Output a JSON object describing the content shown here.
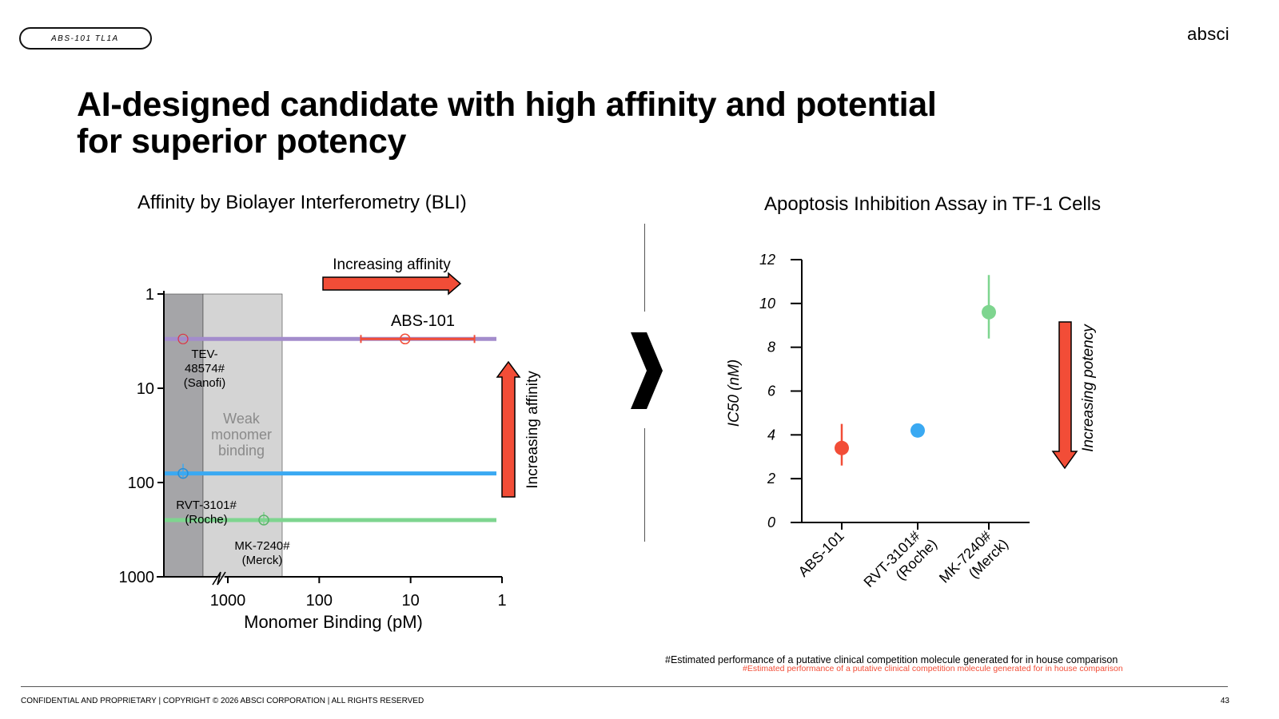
{
  "header": {
    "tag": "ABS-101 TL1A",
    "logo": "absci"
  },
  "title": {
    "line1": "AI-designed candidate with high affinity and potential",
    "line2": "for superior potency"
  },
  "colors": {
    "abs": "#f24d37",
    "rvt": "#3aa9f2",
    "mk": "#7ed58f",
    "tev": "#a38ccc",
    "arrow": "#f24d37",
    "dark_gray": "#a5a5a8",
    "light_gray": "#d4d4d4"
  },
  "bli": {
    "heading": "Affinity by Biolayer Interferometry (BLI)",
    "gray_band_label": "Weak monomer binding",
    "increasing_affinity_top": "Increasing affinity",
    "increasing_affinity_right": "Increasing affinity",
    "abs_label": "ABS-101",
    "tev_label": [
      "TEV-",
      "48574#",
      "(Sanofi)"
    ],
    "rvt_label": [
      "RVT-3101#",
      "(Roche)"
    ],
    "mk_label": [
      "MK-7240#",
      "(Merck)"
    ],
    "xlabel": "Monomer Binding (pM)",
    "ylabel": "",
    "xticks": [
      "1000",
      "100",
      "10",
      "1"
    ],
    "yticks": [
      "1",
      "10",
      "100",
      "1000"
    ]
  },
  "assay": {
    "heading": "Apoptosis Inhibition Assay in TF-1 Cells",
    "ylabel": "IC50 (nM)",
    "increasing_potency": "Increasing potency",
    "xticks": [
      [
        "ABS-101"
      ],
      [
        "RVT-3101#",
        "(Roche)"
      ],
      [
        "MK-7240#",
        "(Merck)"
      ]
    ],
    "yticks": [
      "0",
      "2",
      "4",
      "6",
      "8",
      "10",
      "12"
    ]
  },
  "chart_data": [
    {
      "type": "scatter",
      "title": "Affinity by Biolayer Interferometry (BLI)",
      "xlabel": "Monomer Binding (pM)",
      "ylabel": "",
      "x_scale": "log-reversed",
      "y_scale": "log-reversed",
      "xlim": [
        3000,
        1
      ],
      "ylim": [
        1,
        1000
      ],
      "series": [
        {
          "name": "ABS-101",
          "color": "#f24d37",
          "x": 11.5,
          "x_err_low": 35,
          "x_err_high": 2,
          "y": 3,
          "y_line_x_range": [
            3000,
            1
          ]
        },
        {
          "name": "TEV-48574# (Sanofi)",
          "color": "#a38ccc",
          "x": 2300,
          "y": 3
        },
        {
          "name": "RVT-3101# (Roche)",
          "color": "#3aa9f2",
          "x": 2300,
          "y": 80
        },
        {
          "name": "MK-7240# (Merck)",
          "color": "#7ed58f",
          "x": 650,
          "y": 250
        }
      ],
      "shaded_regions": [
        {
          "label": "",
          "x_range": [
            3000,
            1500
          ],
          "color": "#a5a5a8"
        },
        {
          "label": "Weak monomer binding",
          "x_range": [
            1500,
            300
          ],
          "color": "#d4d4d4"
        }
      ],
      "grid": false
    },
    {
      "type": "scatter",
      "title": "Apoptosis Inhibition Assay in TF-1 Cells",
      "xlabel": "",
      "ylabel": "IC50 (nM)",
      "categories": [
        "ABS-101",
        "RVT-3101# (Roche)",
        "MK-7240# (Merck)"
      ],
      "values": [
        3.4,
        4.2,
        9.6
      ],
      "err_low": [
        2.6,
        3.9,
        8.4
      ],
      "err_high": [
        4.5,
        4.5,
        11.3
      ],
      "colors": [
        "#f24d37",
        "#3aa9f2",
        "#7ed58f"
      ],
      "ylim": [
        0,
        12
      ],
      "grid": false
    }
  ],
  "footnote": "#Estimated performance of a putative clinical competition molecule generated for in house comparison",
  "footnote_red": "#Estimated performance of a putative clinical competition molecule generated for in house comparison",
  "footer": {
    "confidential": "CONFIDENTIAL AND PROPRIETARY | COPYRIGHT © 2026 ABSCI CORPORATION | ALL RIGHTS RESERVED",
    "page": "43"
  }
}
